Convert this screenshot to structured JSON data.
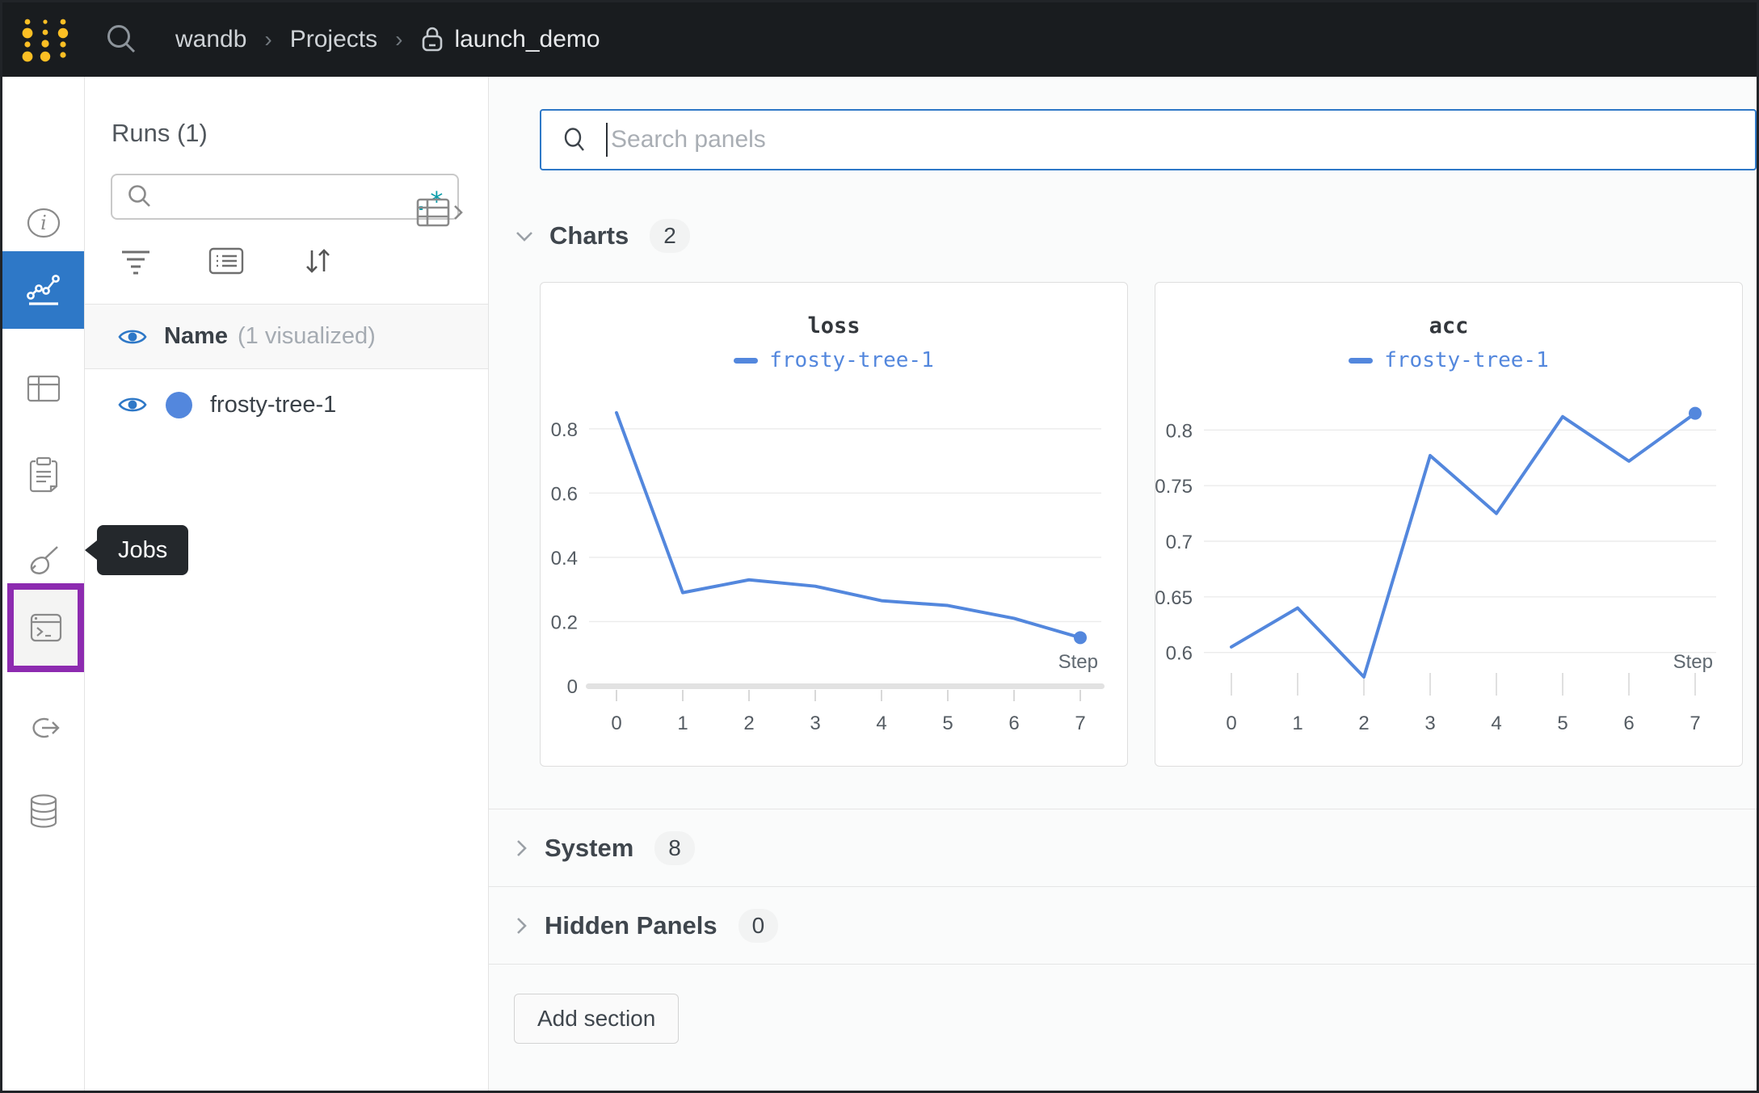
{
  "topbar": {
    "breadcrumb": {
      "entity": "wandb",
      "section": "Projects",
      "project": "launch_demo",
      "separator": "›"
    }
  },
  "icon_rail": {
    "items": [
      {
        "name": "info",
        "active": false
      },
      {
        "name": "workspace-charts",
        "active": true
      },
      {
        "name": "tables",
        "active": false
      },
      {
        "name": "logs",
        "active": false
      },
      {
        "name": "sweeps",
        "active": false
      },
      {
        "name": "jobs",
        "active": false,
        "highlighted": true
      },
      {
        "name": "launch",
        "active": false
      },
      {
        "name": "artifacts",
        "active": false
      }
    ],
    "highlight_color": "#8d2bb0",
    "active_color": "#2e78c7"
  },
  "tooltip": {
    "label": "Jobs"
  },
  "runs_panel": {
    "title": "Runs (1)",
    "search_placeholder": "",
    "regex_icon": ".*",
    "header": {
      "name": "Name",
      "visualized": "(1 visualized)"
    },
    "runs": [
      {
        "name": "frosty-tree-1",
        "color": "#5387dd",
        "visible": true
      }
    ]
  },
  "main": {
    "panel_search_placeholder": "Search panels",
    "sections": [
      {
        "label": "Charts",
        "count": "2",
        "expanded": true
      },
      {
        "label": "System",
        "count": "8",
        "expanded": false
      },
      {
        "label": "Hidden Panels",
        "count": "0",
        "expanded": false
      }
    ],
    "add_section_label": "Add section"
  },
  "colors": {
    "accent_blue": "#2e78c7",
    "run_blue": "#5387dd",
    "regex_teal": "#0b9daa",
    "highlight_purple": "#8d2bb0",
    "navbar_bg": "#191c1f",
    "logo_yellow": "#fcbf24"
  },
  "chart_data": [
    {
      "type": "line",
      "title": "loss",
      "xlabel": "Step",
      "x_ticks": [
        0,
        1,
        2,
        3,
        4,
        5,
        6,
        7
      ],
      "y_ticks": [
        0,
        0.2,
        0.4,
        0.6,
        0.8
      ],
      "ylim": [
        0,
        0.9
      ],
      "xlim": [
        0,
        7
      ],
      "grid": "horizontal",
      "legend_position": "top",
      "axis_style": "bar",
      "series": [
        {
          "name": "frosty-tree-1",
          "color": "#5387dd",
          "x": [
            0,
            1,
            2,
            3,
            4,
            5,
            6,
            7
          ],
          "y": [
            0.85,
            0.29,
            0.33,
            0.31,
            0.265,
            0.25,
            0.21,
            0.15
          ],
          "end_marker": true
        }
      ]
    },
    {
      "type": "line",
      "title": "acc",
      "xlabel": "Step",
      "x_ticks": [
        0,
        1,
        2,
        3,
        4,
        5,
        6,
        7
      ],
      "y_ticks": [
        0.6,
        0.65,
        0.7,
        0.75,
        0.8
      ],
      "ylim": [
        0.57,
        0.83
      ],
      "xlim": [
        0,
        7
      ],
      "grid": "horizontal",
      "legend_position": "top",
      "axis_style": "ticks",
      "series": [
        {
          "name": "frosty-tree-1",
          "color": "#5387dd",
          "x": [
            0,
            1,
            2,
            3,
            4,
            5,
            6,
            7
          ],
          "y": [
            0.605,
            0.64,
            0.578,
            0.777,
            0.725,
            0.812,
            0.772,
            0.815
          ],
          "end_marker": true
        }
      ]
    }
  ]
}
